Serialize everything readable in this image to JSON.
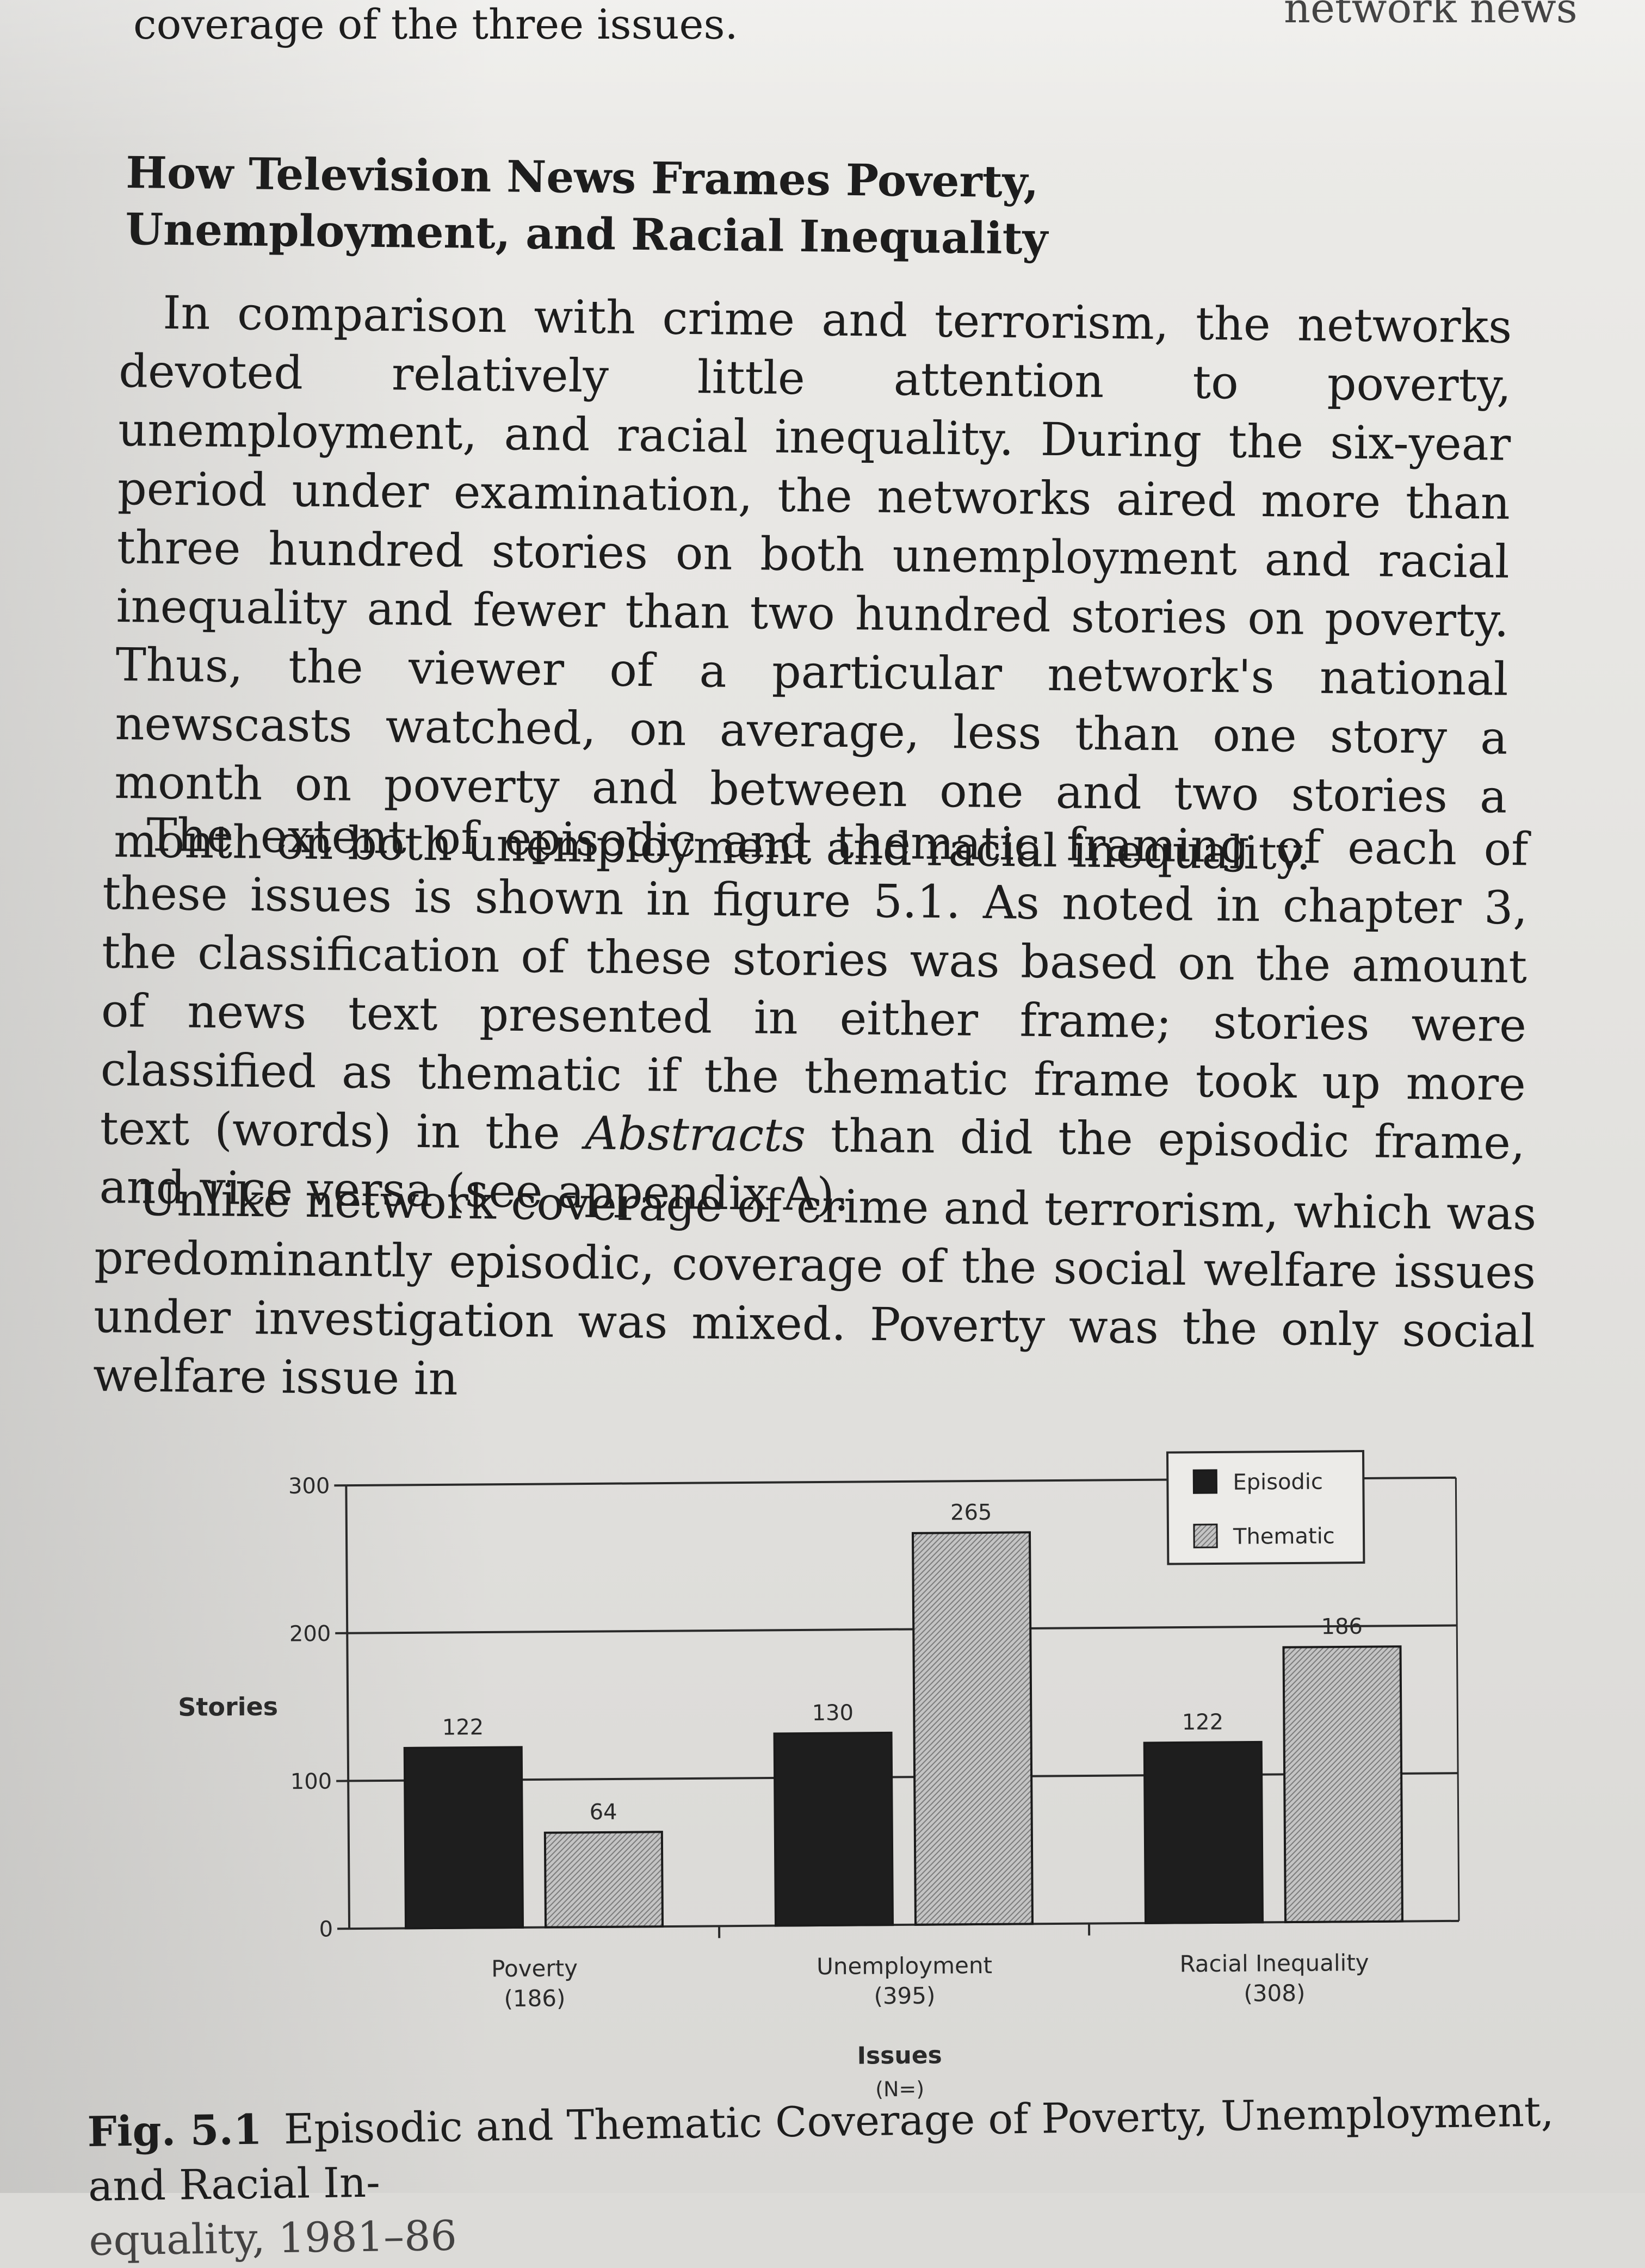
{
  "top_line": "coverage of the three issues.",
  "top_right_fragment": "network news",
  "heading": "How Television News Frames Poverty, Unemployment, and Racial Inequality",
  "paragraphs": [
    "In comparison with crime and terrorism, the networks devoted relatively little attention to poverty, unemployment, and racial inequality. During the six-year period under examination, the networks aired more than three hundred stories on both unemployment and racial inequality and fewer than two hundred stories on poverty. Thus, the viewer of a particular network's national newscasts watched, on average, less than one story a month on poverty and between one and two stories a month on both unemployment and racial inequality.",
    {
      "before": "The extent of episodic and thematic framing of each of these issues is shown in figure 5.1. As noted in chapter 3, the classification of these stories was based on the amount of news text presented in either frame; stories were classified as thematic if the thematic frame took up more text (words) in the ",
      "italic": "Abstracts",
      "after": " than did the episodic frame, and vice versa (see appendix A)."
    },
    "Unlike network coverage of crime and terrorism, which was predominantly episodic, coverage of the social welfare issues under investigation was mixed. Poverty was the only social welfare issue in"
  ],
  "chart_data": {
    "type": "bar",
    "categories": [
      "Poverty\n(186)",
      "Unemployment\n(395)",
      "Racial Inequality\n(308)"
    ],
    "category_names": [
      "Poverty",
      "Unemployment",
      "Racial Inequality"
    ],
    "category_counts": [
      "(186)",
      "(395)",
      "(308)"
    ],
    "series": [
      {
        "name": "Episodic",
        "values": [
          122,
          130,
          122
        ],
        "color": "#1e1e1e"
      },
      {
        "name": "Thematic",
        "values": [
          64,
          265,
          186
        ],
        "color": "#b9b9b9",
        "pattern": "hatched"
      }
    ],
    "data_labels": [
      [
        "122",
        "130",
        "122"
      ],
      [
        "64",
        "265",
        "186"
      ]
    ],
    "ylabel": "Stories",
    "xlabel": "Issues",
    "xlabel_sub": "(N=)",
    "yticks": [
      0,
      100,
      200,
      300
    ],
    "ylim": [
      0,
      300
    ],
    "gridlines": [
      100,
      200,
      300
    ],
    "legend_position": "top-right"
  },
  "caption": {
    "label": "Fig. 5.1",
    "text": "Episodic and Thematic Coverage of Poverty, Unemployment, and Racial In-",
    "text_cont": "equality, 1981–86"
  }
}
